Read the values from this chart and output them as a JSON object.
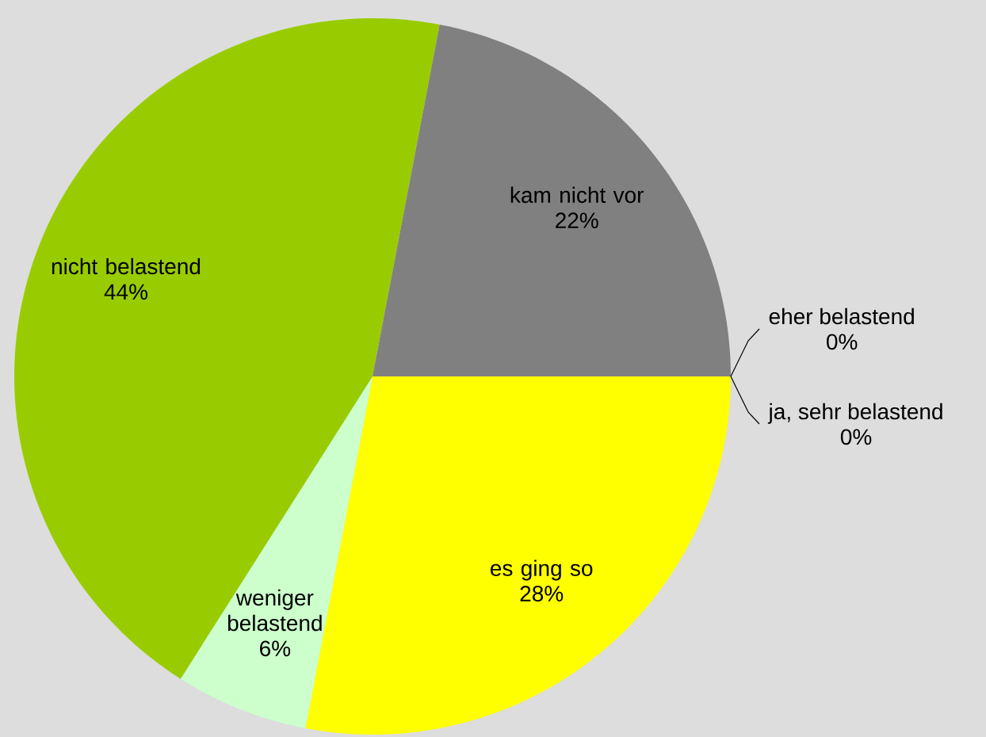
{
  "chart_data": {
    "type": "pie",
    "categories": [
      "es ging so",
      "weniger belastend",
      "nicht belastend",
      "kam nicht vor",
      "eher belastend",
      "ja, sehr belastend"
    ],
    "values": [
      28,
      6,
      44,
      22,
      0,
      0
    ],
    "colors": [
      "#ffff00",
      "#ccffcc",
      "#99cc00",
      "#808080",
      "#ff9900",
      "#ff0000"
    ],
    "value_labels": [
      "28%",
      "6%",
      "44%",
      "22%",
      "0%",
      "0%"
    ]
  }
}
